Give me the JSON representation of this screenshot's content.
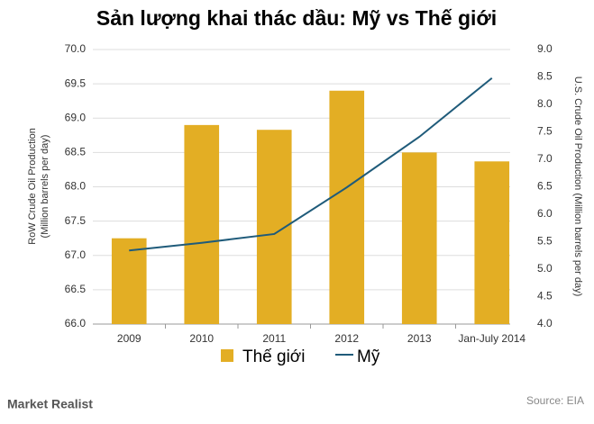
{
  "chart_data": {
    "type": "bar",
    "title": "Sản lượng khai thác dầu: Mỹ vs Thế giới",
    "y_label": [
      "RoW Crude Oil Production",
      "(Million barrels per day)"
    ],
    "y2_label": "U.S. Crude Oil Production (Million barrels per day)",
    "categories": [
      "2009",
      "2010",
      "2011",
      "2012",
      "2013",
      "Jan-July 2014"
    ],
    "series": [
      {
        "name": "Thế giới",
        "type": "bar",
        "color": "#e3ae24",
        "values": [
          67.25,
          68.9,
          68.83,
          69.4,
          68.5,
          68.37
        ]
      },
      {
        "name": "Mỹ",
        "type": "line",
        "axis": "y2",
        "color": "#1f5b7a",
        "values": [
          5.34,
          5.48,
          5.64,
          6.49,
          7.41,
          8.48
        ]
      }
    ],
    "ylim": [
      66,
      70
    ],
    "yticks": [
      {
        "value": 66,
        "label": "66.0"
      },
      66.5,
      {
        "value": 67,
        "label": "67.0"
      },
      67.5,
      {
        "value": 68,
        "label": "68.0"
      },
      68.5,
      {
        "value": 69,
        "label": "69.0"
      },
      69.5,
      {
        "value": 70,
        "label": "70.0"
      }
    ],
    "y2lim": [
      4,
      9
    ],
    "y2ticks": [
      {
        "value": 4,
        "label": "4.0"
      },
      4.5,
      {
        "value": 5,
        "label": "5.0"
      },
      5.5,
      {
        "value": 6,
        "label": "6.0"
      },
      6.5,
      {
        "value": 7,
        "label": "7.0"
      },
      7.5,
      {
        "value": 8,
        "label": "8.0"
      },
      8.5,
      {
        "value": 9,
        "label": "9.0"
      }
    ],
    "grid": true,
    "brand": "Market Realist",
    "source": "Source: EIA"
  }
}
